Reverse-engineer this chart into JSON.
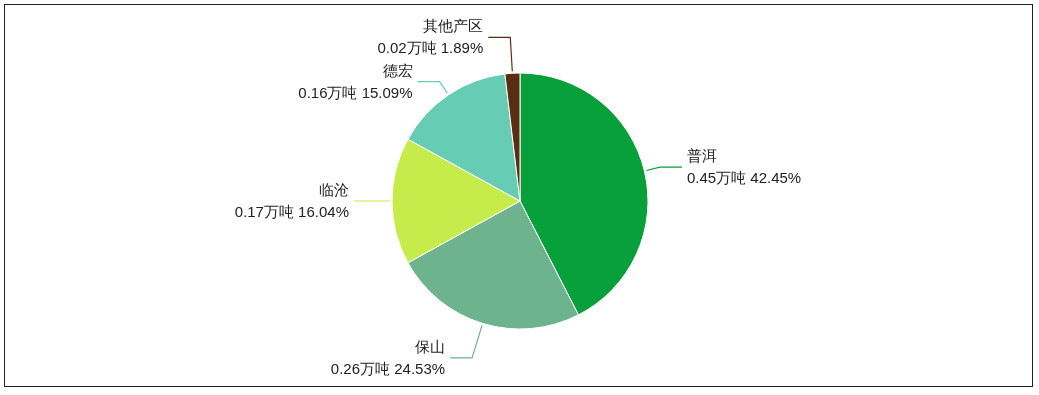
{
  "chart_data": {
    "type": "pie",
    "categories": [
      "普洱",
      "保山",
      "临沧",
      "德宏",
      "其他产区"
    ],
    "values": [
      0.45,
      0.26,
      0.17,
      0.16,
      0.02
    ],
    "value_labels": [
      "0.45万吨  42.45%",
      "0.26万吨  24.53%",
      "0.17万吨  16.04%",
      "0.16万吨  15.09%",
      "0.02万吨  1.89%"
    ],
    "colors": [
      "#07a03a",
      "#6db38e",
      "#c5ec4a",
      "#66cdb4",
      "#5a2d12"
    ]
  }
}
